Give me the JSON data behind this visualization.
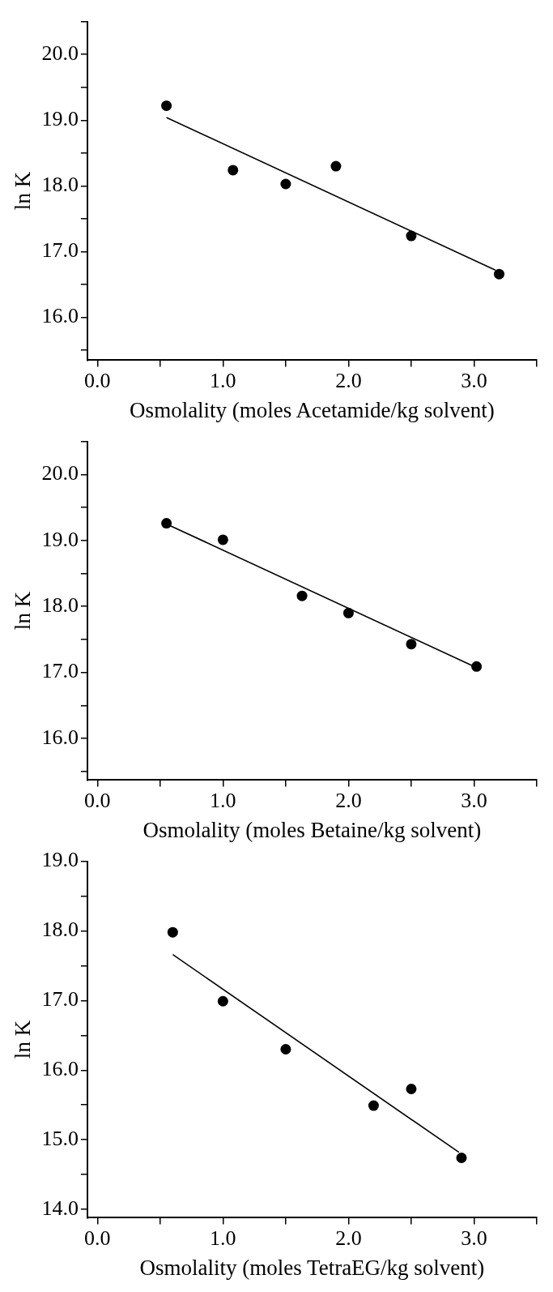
{
  "chart_data": [
    {
      "type": "scatter",
      "xlabel": "Osmolality (moles Acetamide/kg solvent)",
      "ylabel": "ln K",
      "xlim": [
        -0.08,
        3.5
      ],
      "ylim": [
        15.35,
        20.5
      ],
      "marker": "circle",
      "xticks": [
        {
          "value": 0,
          "label": "0.0"
        },
        {
          "value": 0.5,
          "label": null
        },
        {
          "value": 1,
          "label": "1.0"
        },
        {
          "value": 1.5,
          "label": null
        },
        {
          "value": 2,
          "label": "2.0"
        },
        {
          "value": 2.5,
          "label": null
        },
        {
          "value": 3,
          "label": "3.0"
        },
        {
          "value": 3.5,
          "label": null
        }
      ],
      "yticks": [
        {
          "value": 15.5,
          "label": null
        },
        {
          "value": 16,
          "label": "16.0"
        },
        {
          "value": 16.5,
          "label": null
        },
        {
          "value": 17,
          "label": "17.0"
        },
        {
          "value": 17.5,
          "label": null
        },
        {
          "value": 18,
          "label": "18.0"
        },
        {
          "value": 18.5,
          "label": null
        },
        {
          "value": 19,
          "label": "19.0"
        },
        {
          "value": 19.5,
          "label": null
        },
        {
          "value": 20,
          "label": "20.0"
        },
        {
          "value": 20.5,
          "label": null
        }
      ],
      "series": [
        {
          "type": "scatter",
          "color": "#000000",
          "x": [
            0.55,
            1.08,
            1.5,
            1.9,
            2.5,
            3.2
          ],
          "values": [
            19.22,
            18.24,
            18.03,
            18.3,
            17.24,
            16.66
          ]
        },
        {
          "type": "line",
          "color": "#000000",
          "marker": "none",
          "x": [
            0.55,
            3.17
          ],
          "values": [
            19.04,
            16.72
          ]
        }
      ]
    },
    {
      "type": "scatter",
      "xlabel": "Osmolality (moles Betaine/kg solvent)",
      "ylabel": "ln K",
      "xlim": [
        -0.08,
        3.5
      ],
      "ylim": [
        15.37,
        20.5
      ],
      "marker": "circle",
      "xticks": [
        {
          "value": 0,
          "label": "0.0"
        },
        {
          "value": 0.5,
          "label": null
        },
        {
          "value": 1,
          "label": "1.0"
        },
        {
          "value": 1.5,
          "label": null
        },
        {
          "value": 2,
          "label": "2.0"
        },
        {
          "value": 2.5,
          "label": null
        },
        {
          "value": 3,
          "label": "3.0"
        },
        {
          "value": 3.5,
          "label": null
        }
      ],
      "yticks": [
        {
          "value": 15.5,
          "label": null
        },
        {
          "value": 16,
          "label": "16.0"
        },
        {
          "value": 16.5,
          "label": null
        },
        {
          "value": 17,
          "label": "17.0"
        },
        {
          "value": 17.5,
          "label": null
        },
        {
          "value": 18,
          "label": "18.0"
        },
        {
          "value": 18.5,
          "label": null
        },
        {
          "value": 19,
          "label": "19.0"
        },
        {
          "value": 19.5,
          "label": null
        },
        {
          "value": 20,
          "label": "20.0"
        },
        {
          "value": 20.5,
          "label": null
        }
      ],
      "series": [
        {
          "type": "scatter",
          "color": "#000000",
          "x": [
            0.55,
            1.0,
            1.63,
            2.0,
            2.5,
            3.02
          ],
          "values": [
            19.26,
            19.01,
            18.16,
            17.9,
            17.43,
            17.09
          ]
        },
        {
          "type": "line",
          "color": "#000000",
          "marker": "none",
          "x": [
            0.55,
            3.0
          ],
          "values": [
            19.25,
            17.09
          ]
        }
      ]
    },
    {
      "type": "scatter",
      "xlabel": "Osmolality (moles TetraEG/kg solvent)",
      "ylabel": "ln K",
      "xlim": [
        -0.08,
        3.5
      ],
      "ylim": [
        13.88,
        19.0
      ],
      "marker": "circle",
      "xticks": [
        {
          "value": 0,
          "label": "0.0"
        },
        {
          "value": 0.5,
          "label": null
        },
        {
          "value": 1,
          "label": "1.0"
        },
        {
          "value": 1.5,
          "label": null
        },
        {
          "value": 2,
          "label": "2.0"
        },
        {
          "value": 2.5,
          "label": null
        },
        {
          "value": 3,
          "label": "3.0"
        },
        {
          "value": 3.5,
          "label": null
        }
      ],
      "yticks": [
        {
          "value": 14,
          "label": "14.0"
        },
        {
          "value": 14.5,
          "label": null
        },
        {
          "value": 15,
          "label": "15.0"
        },
        {
          "value": 15.5,
          "label": null
        },
        {
          "value": 16,
          "label": "16.0"
        },
        {
          "value": 16.5,
          "label": null
        },
        {
          "value": 17,
          "label": "17.0"
        },
        {
          "value": 17.5,
          "label": null
        },
        {
          "value": 18,
          "label": "18.0"
        },
        {
          "value": 18.5,
          "label": null
        },
        {
          "value": 19,
          "label": "19.0"
        }
      ],
      "series": [
        {
          "type": "scatter",
          "color": "#000000",
          "x": [
            0.6,
            1.0,
            1.5,
            2.2,
            2.5,
            2.9
          ],
          "values": [
            17.98,
            16.99,
            16.3,
            15.49,
            15.73,
            14.74
          ]
        },
        {
          "type": "line",
          "color": "#000000",
          "marker": "none",
          "x": [
            0.6,
            2.88
          ],
          "values": [
            17.66,
            14.82
          ]
        }
      ]
    }
  ]
}
